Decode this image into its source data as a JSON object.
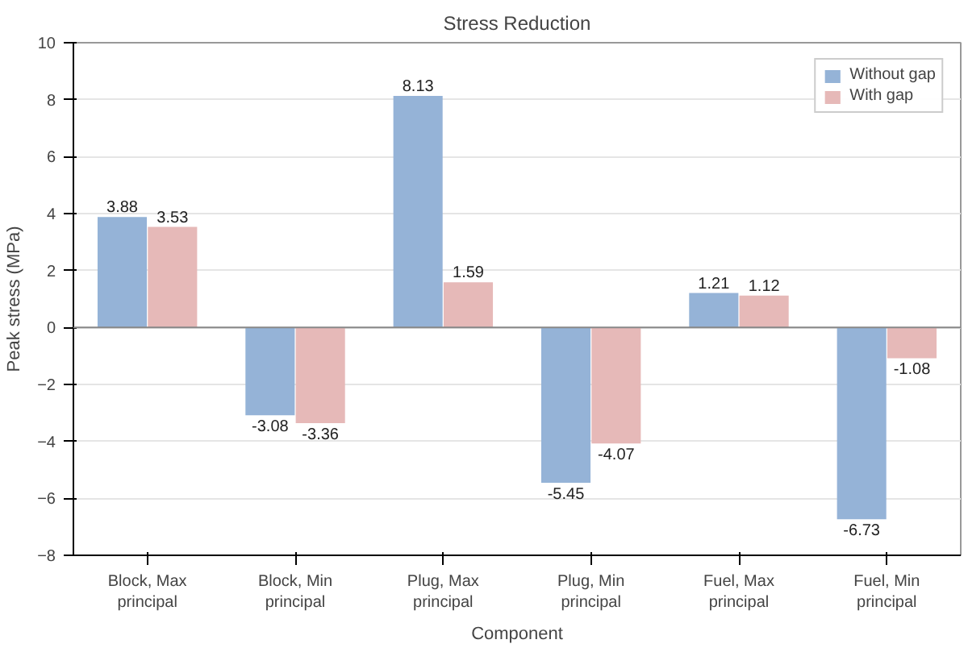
{
  "chart_data": {
    "type": "bar",
    "title": "Stress Reduction",
    "xlabel": "Component",
    "ylabel": "Peak stress (MPa)",
    "categories": [
      "Block, Max principal",
      "Block, Min principal",
      "Plug, Max principal",
      "Plug, Min principal",
      "Fuel, Max principal",
      "Fuel, Min principal"
    ],
    "series": [
      {
        "name": "Without gap",
        "color": "#95b3d7",
        "values": [
          3.88,
          -3.08,
          8.13,
          -5.45,
          1.21,
          -6.73
        ]
      },
      {
        "name": "With gap",
        "color": "#e6b9b8",
        "values": [
          3.53,
          -3.36,
          1.59,
          -4.07,
          1.12,
          -1.08
        ]
      }
    ],
    "ylim": [
      -8,
      10
    ],
    "yticks": [
      -8,
      -6,
      -4,
      -2,
      0,
      2,
      4,
      6,
      8,
      10
    ],
    "grid": "y",
    "legend": "top right",
    "data_labels": true
  }
}
